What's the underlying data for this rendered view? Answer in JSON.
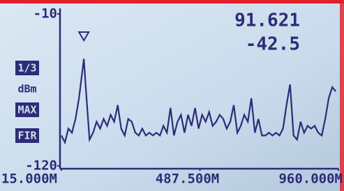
{
  "chart_data": {
    "type": "line",
    "readout": {
      "frequency": "91.621",
      "level": "-42.5"
    },
    "side_labels": {
      "scale": "1/3",
      "unit": "dBm",
      "mode": "MAX",
      "filter": "FIR"
    },
    "x": [
      15,
      27,
      39,
      51,
      63,
      75,
      91.621,
      99,
      111,
      123,
      135,
      147,
      159,
      171,
      183,
      195,
      207,
      219,
      231,
      243,
      255,
      267,
      279,
      291,
      303,
      315,
      327,
      339,
      351,
      363,
      375,
      387,
      399,
      411,
      423,
      435,
      447,
      459,
      471,
      483,
      495,
      507,
      519,
      531,
      543,
      555,
      567,
      579,
      591,
      603,
      615,
      627,
      639,
      651,
      663,
      675,
      687,
      699,
      711,
      723,
      735,
      747,
      759,
      771,
      783,
      795,
      807,
      819,
      831,
      843,
      855,
      867,
      879,
      891,
      903,
      915,
      927,
      939,
      951
    ],
    "series": [
      {
        "color": "#2c2c78",
        "values": [
          -98,
          -103,
          -93,
          -96,
          -86,
          -71,
          -42.5,
          -66,
          -101,
          -96,
          -88,
          -93,
          -86,
          -91,
          -83,
          -88,
          -76,
          -93,
          -98,
          -86,
          -88,
          -96,
          -98,
          -93,
          -98,
          -96,
          -98,
          -96,
          -98,
          -91,
          -96,
          -78,
          -98,
          -88,
          -83,
          -96,
          -83,
          -91,
          -78,
          -93,
          -83,
          -88,
          -81,
          -91,
          -88,
          -83,
          -86,
          -93,
          -88,
          -76,
          -96,
          -91,
          -83,
          -88,
          -71,
          -96,
          -86,
          -98,
          -98,
          -96,
          -98,
          -96,
          -98,
          -93,
          -76,
          -61,
          -98,
          -101,
          -88,
          -96,
          -91,
          -93,
          -91,
          -96,
          -98,
          -86,
          -71,
          -63,
          -66
        ]
      }
    ],
    "xlim": [
      15,
      960
    ],
    "ylim": [
      -120,
      -10
    ],
    "xticks": [
      {
        "value": 15,
        "label": "15.000M"
      },
      {
        "value": 487.5,
        "label": "487.500M"
      },
      {
        "value": 960,
        "label": "960.000M"
      }
    ],
    "yticks": [
      -10,
      -120
    ]
  }
}
